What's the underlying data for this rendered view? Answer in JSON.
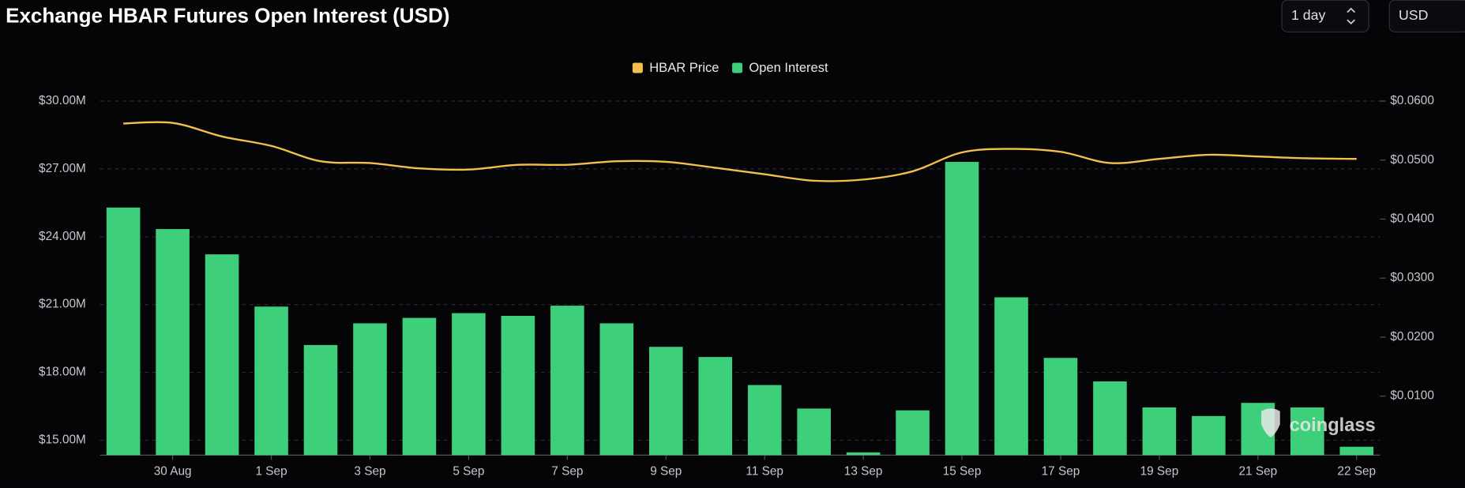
{
  "chart_data": {
    "type": "bar",
    "title": "Exchange HBAR Futures Open Interest (USD)",
    "controls": [
      "1 day",
      "USD"
    ],
    "watermark": "coinglass",
    "categories": [
      null,
      "30 Aug",
      null,
      "1 Sep",
      null,
      "3 Sep",
      null,
      "5 Sep",
      null,
      "7 Sep",
      null,
      "9 Sep",
      null,
      "11 Sep",
      null,
      "13 Sep",
      null,
      "15 Sep",
      null,
      "17 Sep",
      null,
      "19 Sep",
      null,
      "21 Sep",
      null,
      "22 Sep"
    ],
    "series": [
      {
        "name": "HBAR Price",
        "color": "#f3c14b",
        "type": "line",
        "axis": "y2",
        "values": [
          0.0562,
          0.0563,
          0.054,
          0.0524,
          0.0498,
          0.0495,
          0.0486,
          0.0484,
          0.0492,
          0.0492,
          0.0498,
          0.0497,
          0.0487,
          0.0476,
          0.0465,
          0.0467,
          0.0481,
          0.0513,
          0.0519,
          0.0514,
          0.0495,
          0.0502,
          0.0509,
          0.0506,
          0.0503,
          0.0502
        ]
      },
      {
        "name": "Open Interest",
        "color": "#3ecf7a",
        "type": "bar",
        "values": [
          25290000,
          24340000,
          23220000,
          20910000,
          19210000,
          20170000,
          20410000,
          20620000,
          20500000,
          20950000,
          20170000,
          19130000,
          18680000,
          17440000,
          16400000,
          14460000,
          16320000,
          27310000,
          21320000,
          18640000,
          17600000,
          16450000,
          16070000,
          16650000,
          16450000,
          14710000
        ]
      }
    ],
    "ylim": [
      14340000,
      30000000
    ],
    "yticks": [
      {
        "value": 15000000,
        "label": "$15.00M"
      },
      {
        "value": 18000000,
        "label": "$18.00M"
      },
      {
        "value": 21000000,
        "label": "$21.00M"
      },
      {
        "value": 24000000,
        "label": "$24.00M"
      },
      {
        "value": 27000000,
        "label": "$27.00M"
      },
      {
        "value": 30000000,
        "label": "$30.00M"
      }
    ],
    "y2lim": [
      0,
      0.06
    ],
    "y2ticks": [
      {
        "value": 0.01,
        "label": "$0.0100"
      },
      {
        "value": 0.02,
        "label": "$0.0200"
      },
      {
        "value": 0.03,
        "label": "$0.0300"
      },
      {
        "value": 0.04,
        "label": "$0.0400"
      },
      {
        "value": 0.05,
        "label": "$0.0500"
      },
      {
        "value": 0.06,
        "label": "$0.0600"
      }
    ],
    "grid": true,
    "legend": "top"
  }
}
